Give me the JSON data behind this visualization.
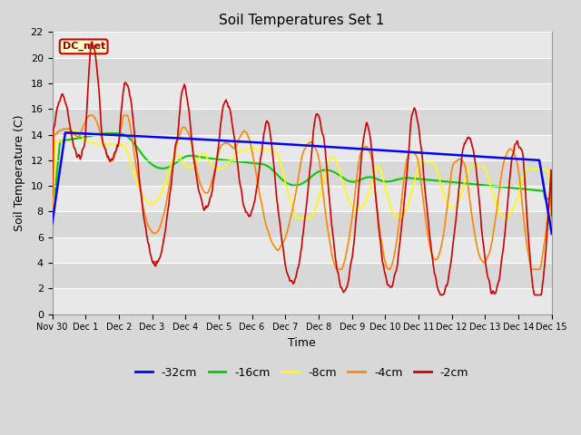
{
  "title": "Soil Temperatures Set 1",
  "xlabel": "Time",
  "ylabel": "Soil Temperature (C)",
  "ylim": [
    0,
    22
  ],
  "yticks": [
    0,
    2,
    4,
    6,
    8,
    10,
    12,
    14,
    16,
    18,
    20,
    22
  ],
  "xtick_labels": [
    "Nov 30",
    "Dec 1",
    "Dec 2",
    "Dec 3",
    "Dec 4",
    "Dec 5",
    "Dec 6",
    "Dec 7",
    "Dec 8",
    "Dec 9",
    "Dec 10",
    "Dec 11",
    "Dec 12",
    "Dec 13",
    "Dec 14",
    "Dec 15"
  ],
  "legend_labels": [
    "-32cm",
    "-16cm",
    "-8cm",
    "-4cm",
    "-2cm"
  ],
  "legend_colors": [
    "#0000ff",
    "#00cc00",
    "#ffff00",
    "#ff8800",
    "#cc0000"
  ],
  "fig_bg_color": "#d8d8d8",
  "plot_bg_color": "#f0f0f0",
  "band_colors": [
    "#e8e8e8",
    "#d8d8d8"
  ],
  "annotation_text": "DC_met",
  "annotation_bg": "#ffffcc",
  "annotation_border": "#cc0000",
  "grid_color": "#ffffff"
}
